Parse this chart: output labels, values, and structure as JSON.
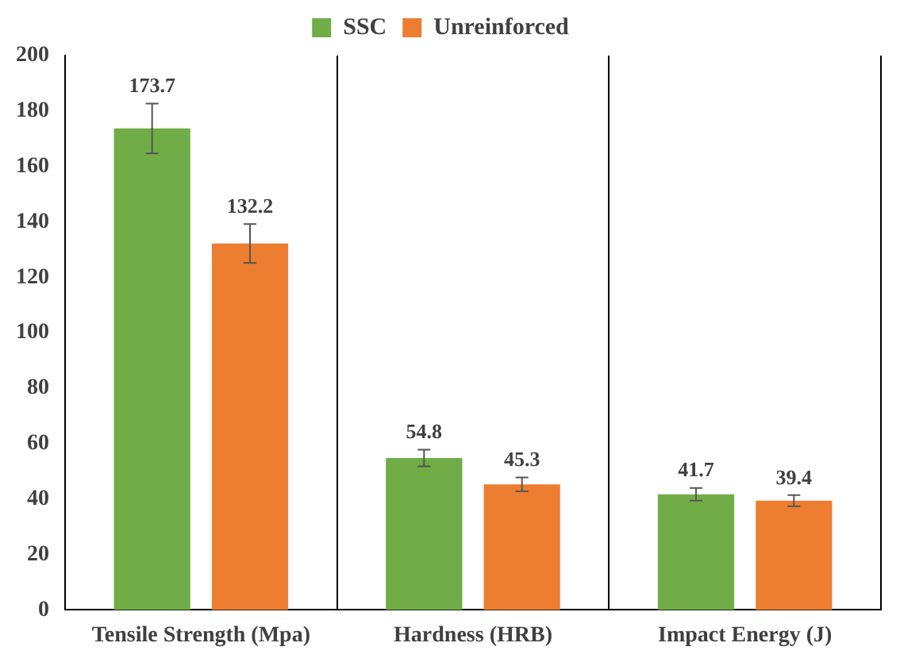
{
  "chart_data": {
    "type": "bar",
    "categories": [
      "Tensile Strength (Mpa)",
      "Hardness (HRB)",
      "Impact Energy (J)"
    ],
    "series": [
      {
        "name": "SSC",
        "color": "#70ad47",
        "values": [
          173.7,
          54.8,
          41.7
        ],
        "errors": [
          9,
          3,
          2.3
        ]
      },
      {
        "name": "Unreinforced",
        "color": "#ed7d31",
        "values": [
          132.2,
          45.3,
          39.4
        ],
        "errors": [
          7,
          2.5,
          2
        ]
      }
    ],
    "ylim": [
      0,
      200
    ],
    "yticks": [
      0,
      20,
      40,
      60,
      80,
      100,
      120,
      140,
      160,
      180,
      200
    ],
    "grid": "x",
    "legend": "top",
    "data_labels": true
  }
}
